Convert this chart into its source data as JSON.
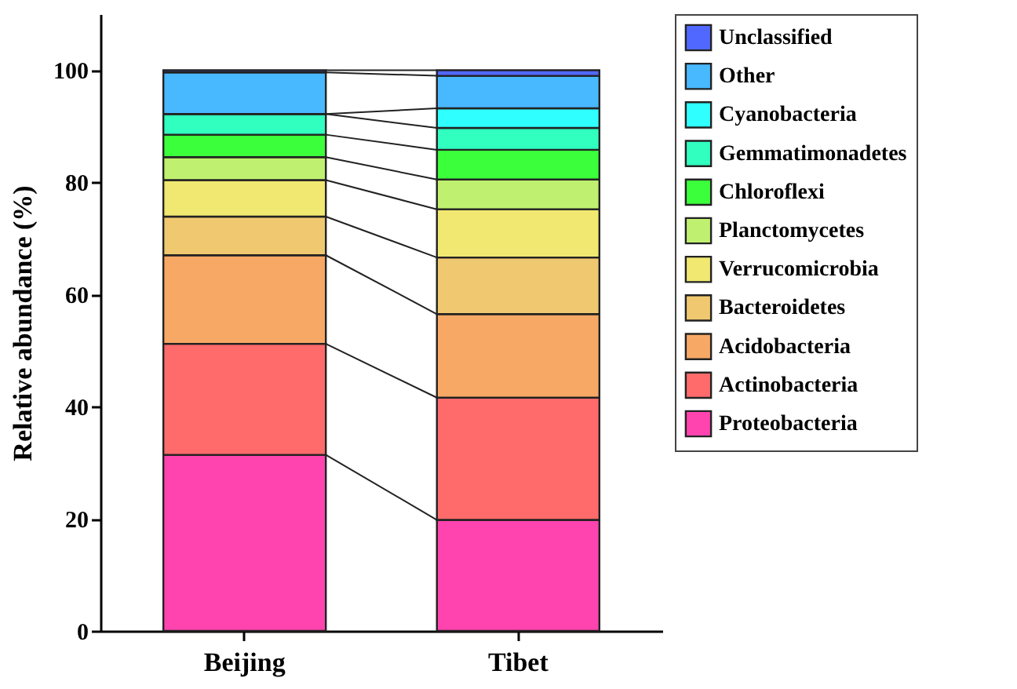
{
  "chart_data": {
    "type": "bar",
    "stacked": true,
    "ylabel": "Relative abundance (%)",
    "categories": [
      "Beijing",
      "Tibet"
    ],
    "ylim": [
      0,
      110
    ],
    "yticks": [
      0,
      20,
      40,
      60,
      80,
      100
    ],
    "grid": false,
    "legend": "right",
    "series": [
      {
        "name": "Proteobacteria",
        "color": "#ff44b0",
        "values": [
          31.4,
          19.8
        ]
      },
      {
        "name": "Actinobacteria",
        "color": "#ff6b6b",
        "values": [
          19.8,
          21.8
        ]
      },
      {
        "name": "Acidobacteria",
        "color": "#f8a865",
        "values": [
          15.8,
          14.9
        ]
      },
      {
        "name": "Bacteroidetes",
        "color": "#f0c870",
        "values": [
          6.9,
          10.1
        ]
      },
      {
        "name": "Verrucomicrobia",
        "color": "#f0e870",
        "values": [
          6.5,
          8.6
        ]
      },
      {
        "name": "Planctomycetes",
        "color": "#c0f070",
        "values": [
          4.1,
          5.3
        ]
      },
      {
        "name": "Chloroflexi",
        "color": "#3aff3a",
        "values": [
          4.0,
          5.3
        ]
      },
      {
        "name": "Gemmatimonadetes",
        "color": "#30ffc0",
        "values": [
          3.7,
          3.9
        ]
      },
      {
        "name": "Cyanobacteria",
        "color": "#30ffff",
        "values": [
          0,
          3.5
        ]
      },
      {
        "name": "Other",
        "color": "#48b8ff",
        "values": [
          7.4,
          5.8
        ]
      },
      {
        "name": "Unclassified",
        "color": "#5068ff",
        "values": [
          0.4,
          1.0
        ]
      }
    ]
  }
}
